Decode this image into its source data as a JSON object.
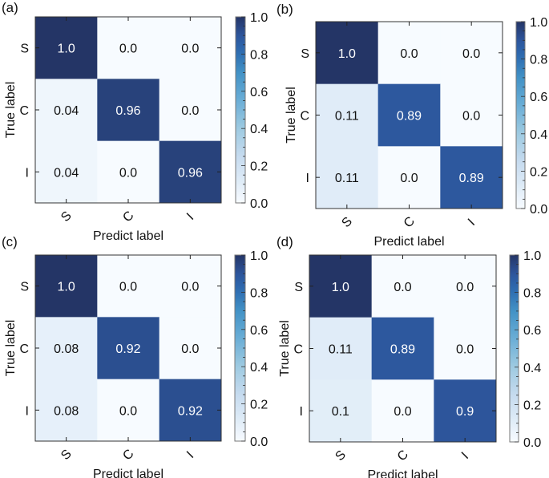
{
  "figure": {
    "colormap": {
      "name": "Blues",
      "low": "#f7fbff",
      "mid": "#6baed6",
      "high": "#243566"
    },
    "text_dark": "#111111",
    "text_light": "#ffffff"
  },
  "chart_data": [
    {
      "type": "heatmap",
      "panel_label": "(a)",
      "title": "",
      "xlabel": "Predict label",
      "ylabel": "True label",
      "x_categories": [
        "S",
        "C",
        "I"
      ],
      "y_categories": [
        "S",
        "C",
        "I"
      ],
      "values": [
        [
          1.0,
          0.0,
          0.0
        ],
        [
          0.04,
          0.96,
          0.0
        ],
        [
          0.04,
          0.0,
          0.96
        ]
      ],
      "value_labels": [
        [
          "1.0",
          "0.0",
          "0.0"
        ],
        [
          "0.04",
          "0.96",
          "0.0"
        ],
        [
          "0.04",
          "0.0",
          "0.96"
        ]
      ],
      "colorbar": {
        "range": [
          0.0,
          1.0
        ],
        "ticks": [
          "0.0",
          "0.2",
          "0.4",
          "0.6",
          "0.8",
          "1.0"
        ]
      }
    },
    {
      "type": "heatmap",
      "panel_label": "(b)",
      "title": "",
      "xlabel": "Predict label",
      "ylabel": "True label",
      "x_categories": [
        "S",
        "C",
        "I"
      ],
      "y_categories": [
        "S",
        "C",
        "I"
      ],
      "values": [
        [
          1.0,
          0.0,
          0.0
        ],
        [
          0.11,
          0.89,
          0.0
        ],
        [
          0.11,
          0.0,
          0.89
        ]
      ],
      "value_labels": [
        [
          "1.0",
          "0.0",
          "0.0"
        ],
        [
          "0.11",
          "0.89",
          "0.0"
        ],
        [
          "0.11",
          "0.0",
          "0.89"
        ]
      ],
      "colorbar": {
        "range": [
          0.0,
          1.0
        ],
        "ticks": [
          "0.0",
          "0.2",
          "0.4",
          "0.6",
          "0.8",
          "1.0"
        ]
      }
    },
    {
      "type": "heatmap",
      "panel_label": "(c)",
      "title": "",
      "xlabel": "Predict label",
      "ylabel": "True label",
      "x_categories": [
        "S",
        "C",
        "I"
      ],
      "y_categories": [
        "S",
        "C",
        "I"
      ],
      "values": [
        [
          1.0,
          0.0,
          0.0
        ],
        [
          0.08,
          0.92,
          0.0
        ],
        [
          0.08,
          0.0,
          0.92
        ]
      ],
      "value_labels": [
        [
          "1.0",
          "0.0",
          "0.0"
        ],
        [
          "0.08",
          "0.92",
          "0.0"
        ],
        [
          "0.08",
          "0.0",
          "0.92"
        ]
      ],
      "colorbar": {
        "range": [
          0.0,
          1.0
        ],
        "ticks": [
          "0.0",
          "0.2",
          "0.4",
          "0.6",
          "0.8",
          "1.0"
        ]
      }
    },
    {
      "type": "heatmap",
      "panel_label": "(d)",
      "title": "",
      "xlabel": "Predict label",
      "ylabel": "True label",
      "x_categories": [
        "S",
        "C",
        "I"
      ],
      "y_categories": [
        "S",
        "C",
        "I"
      ],
      "values": [
        [
          1.0,
          0.0,
          0.0
        ],
        [
          0.11,
          0.89,
          0.0
        ],
        [
          0.1,
          0.0,
          0.9
        ]
      ],
      "value_labels": [
        [
          "1.0",
          "0.0",
          "0.0"
        ],
        [
          "0.11",
          "0.89",
          "0.0"
        ],
        [
          "0.1",
          "0.0",
          "0.9"
        ]
      ],
      "colorbar": {
        "range": [
          0.0,
          1.0
        ],
        "ticks": [
          "0.0",
          "0.2",
          "0.4",
          "0.6",
          "0.8",
          "1.0"
        ]
      }
    }
  ]
}
